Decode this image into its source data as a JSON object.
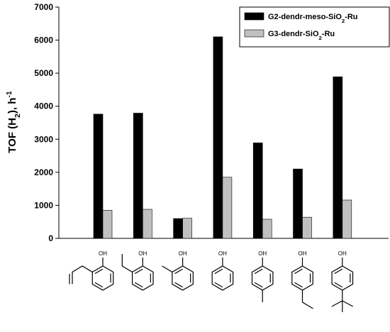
{
  "chart_data": {
    "type": "bar",
    "y_label": "TOF (H2), h-1",
    "categories": [
      null,
      null,
      null,
      null,
      null,
      null,
      null
    ],
    "structure_label": "OH",
    "series": [
      {
        "name": "G2-dendr-meso-SiO2-Ru",
        "color": "#000000",
        "values": [
          3760,
          3790,
          600,
          6100,
          2890,
          2100,
          4890
        ]
      },
      {
        "name": "G3-dendr-SiO2-Ru",
        "color": "#c0c0c0",
        "values": [
          850,
          880,
          610,
          1850,
          580,
          640,
          1160
        ]
      }
    ],
    "ylim": [
      0,
      7000
    ],
    "yticks": [
      0,
      1000,
      2000,
      3000,
      4000,
      5000,
      6000,
      7000
    ],
    "grid": false,
    "legend": "top-right"
  }
}
